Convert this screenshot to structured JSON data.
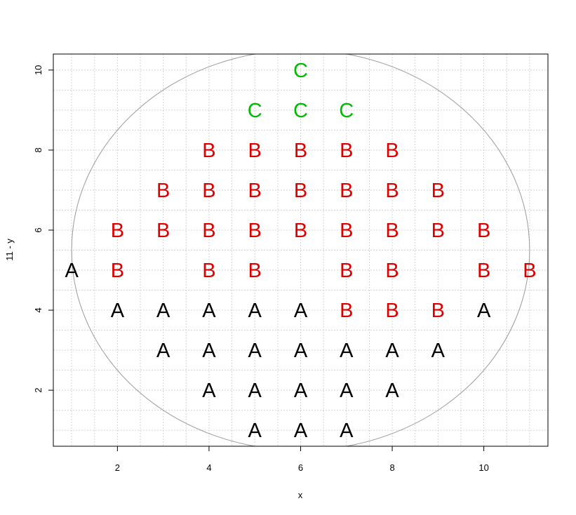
{
  "chart_data": {
    "type": "scatter",
    "title": "",
    "xlabel": "x",
    "ylabel": "11 - y",
    "xlim": [
      0.6,
      11.4
    ],
    "ylim": [
      0.6,
      10.4
    ],
    "x_ticks": [
      2,
      4,
      6,
      8,
      10
    ],
    "y_ticks": [
      2,
      4,
      6,
      8,
      10
    ],
    "grid": true,
    "circle": {
      "center": [
        6,
        5.5
      ],
      "radius_x": 5,
      "radius_y": 5
    },
    "colors": {
      "A": "#000000",
      "B": "#dd0000",
      "C": "#00bb00"
    },
    "points": [
      {
        "x": 5,
        "y": 1,
        "label": "A"
      },
      {
        "x": 6,
        "y": 1,
        "label": "A"
      },
      {
        "x": 7,
        "y": 1,
        "label": "A"
      },
      {
        "x": 4,
        "y": 2,
        "label": "A"
      },
      {
        "x": 5,
        "y": 2,
        "label": "A"
      },
      {
        "x": 6,
        "y": 2,
        "label": "A"
      },
      {
        "x": 7,
        "y": 2,
        "label": "A"
      },
      {
        "x": 8,
        "y": 2,
        "label": "A"
      },
      {
        "x": 3,
        "y": 3,
        "label": "A"
      },
      {
        "x": 4,
        "y": 3,
        "label": "A"
      },
      {
        "x": 5,
        "y": 3,
        "label": "A"
      },
      {
        "x": 6,
        "y": 3,
        "label": "A"
      },
      {
        "x": 7,
        "y": 3,
        "label": "A"
      },
      {
        "x": 8,
        "y": 3,
        "label": "A"
      },
      {
        "x": 9,
        "y": 3,
        "label": "A"
      },
      {
        "x": 2,
        "y": 4,
        "label": "A"
      },
      {
        "x": 3,
        "y": 4,
        "label": "A"
      },
      {
        "x": 4,
        "y": 4,
        "label": "A"
      },
      {
        "x": 5,
        "y": 4,
        "label": "A"
      },
      {
        "x": 6,
        "y": 4,
        "label": "A"
      },
      {
        "x": 7,
        "y": 4,
        "label": "B"
      },
      {
        "x": 8,
        "y": 4,
        "label": "B"
      },
      {
        "x": 9,
        "y": 4,
        "label": "B"
      },
      {
        "x": 10,
        "y": 4,
        "label": "A"
      },
      {
        "x": 1,
        "y": 5,
        "label": "A"
      },
      {
        "x": 2,
        "y": 5,
        "label": "B"
      },
      {
        "x": 4,
        "y": 5,
        "label": "B"
      },
      {
        "x": 5,
        "y": 5,
        "label": "B"
      },
      {
        "x": 7,
        "y": 5,
        "label": "B"
      },
      {
        "x": 8,
        "y": 5,
        "label": "B"
      },
      {
        "x": 10,
        "y": 5,
        "label": "B"
      },
      {
        "x": 11,
        "y": 5,
        "label": "B"
      },
      {
        "x": 2,
        "y": 6,
        "label": "B"
      },
      {
        "x": 3,
        "y": 6,
        "label": "B"
      },
      {
        "x": 4,
        "y": 6,
        "label": "B"
      },
      {
        "x": 5,
        "y": 6,
        "label": "B"
      },
      {
        "x": 6,
        "y": 6,
        "label": "B"
      },
      {
        "x": 7,
        "y": 6,
        "label": "B"
      },
      {
        "x": 8,
        "y": 6,
        "label": "B"
      },
      {
        "x": 9,
        "y": 6,
        "label": "B"
      },
      {
        "x": 10,
        "y": 6,
        "label": "B"
      },
      {
        "x": 3,
        "y": 7,
        "label": "B"
      },
      {
        "x": 4,
        "y": 7,
        "label": "B"
      },
      {
        "x": 5,
        "y": 7,
        "label": "B"
      },
      {
        "x": 6,
        "y": 7,
        "label": "B"
      },
      {
        "x": 7,
        "y": 7,
        "label": "B"
      },
      {
        "x": 8,
        "y": 7,
        "label": "B"
      },
      {
        "x": 9,
        "y": 7,
        "label": "B"
      },
      {
        "x": 4,
        "y": 8,
        "label": "B"
      },
      {
        "x": 5,
        "y": 8,
        "label": "B"
      },
      {
        "x": 6,
        "y": 8,
        "label": "B"
      },
      {
        "x": 7,
        "y": 8,
        "label": "B"
      },
      {
        "x": 8,
        "y": 8,
        "label": "B"
      },
      {
        "x": 5,
        "y": 9,
        "label": "C"
      },
      {
        "x": 6,
        "y": 9,
        "label": "C"
      },
      {
        "x": 7,
        "y": 9,
        "label": "C"
      },
      {
        "x": 6,
        "y": 10,
        "label": "C"
      }
    ]
  }
}
